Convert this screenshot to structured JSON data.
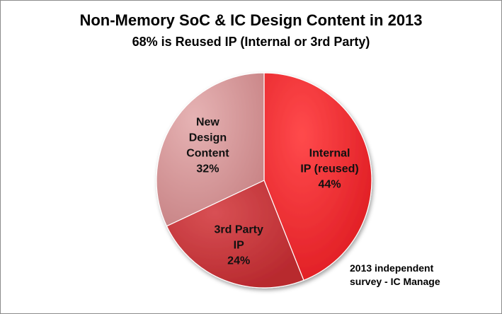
{
  "chart_data": {
    "type": "pie",
    "title": "Non-Memory SoC & IC Design Content in 2013",
    "subtitle": "68% is Reused IP (Internal or 3rd Party)",
    "slices": [
      {
        "label_lines": [
          "Internal",
          "IP (reused)",
          "44%"
        ],
        "value": 44,
        "color": "#e8262b"
      },
      {
        "label_lines": [
          "3rd Party",
          "IP",
          "24%"
        ],
        "value": 24,
        "color": "#c9383c"
      },
      {
        "label_lines": [
          "New",
          "Design",
          "Content",
          "32%"
        ],
        "value": 32,
        "color": "#d8999b"
      }
    ],
    "annotation_lines": [
      "2013 independent",
      "survey - IC Manage"
    ]
  }
}
